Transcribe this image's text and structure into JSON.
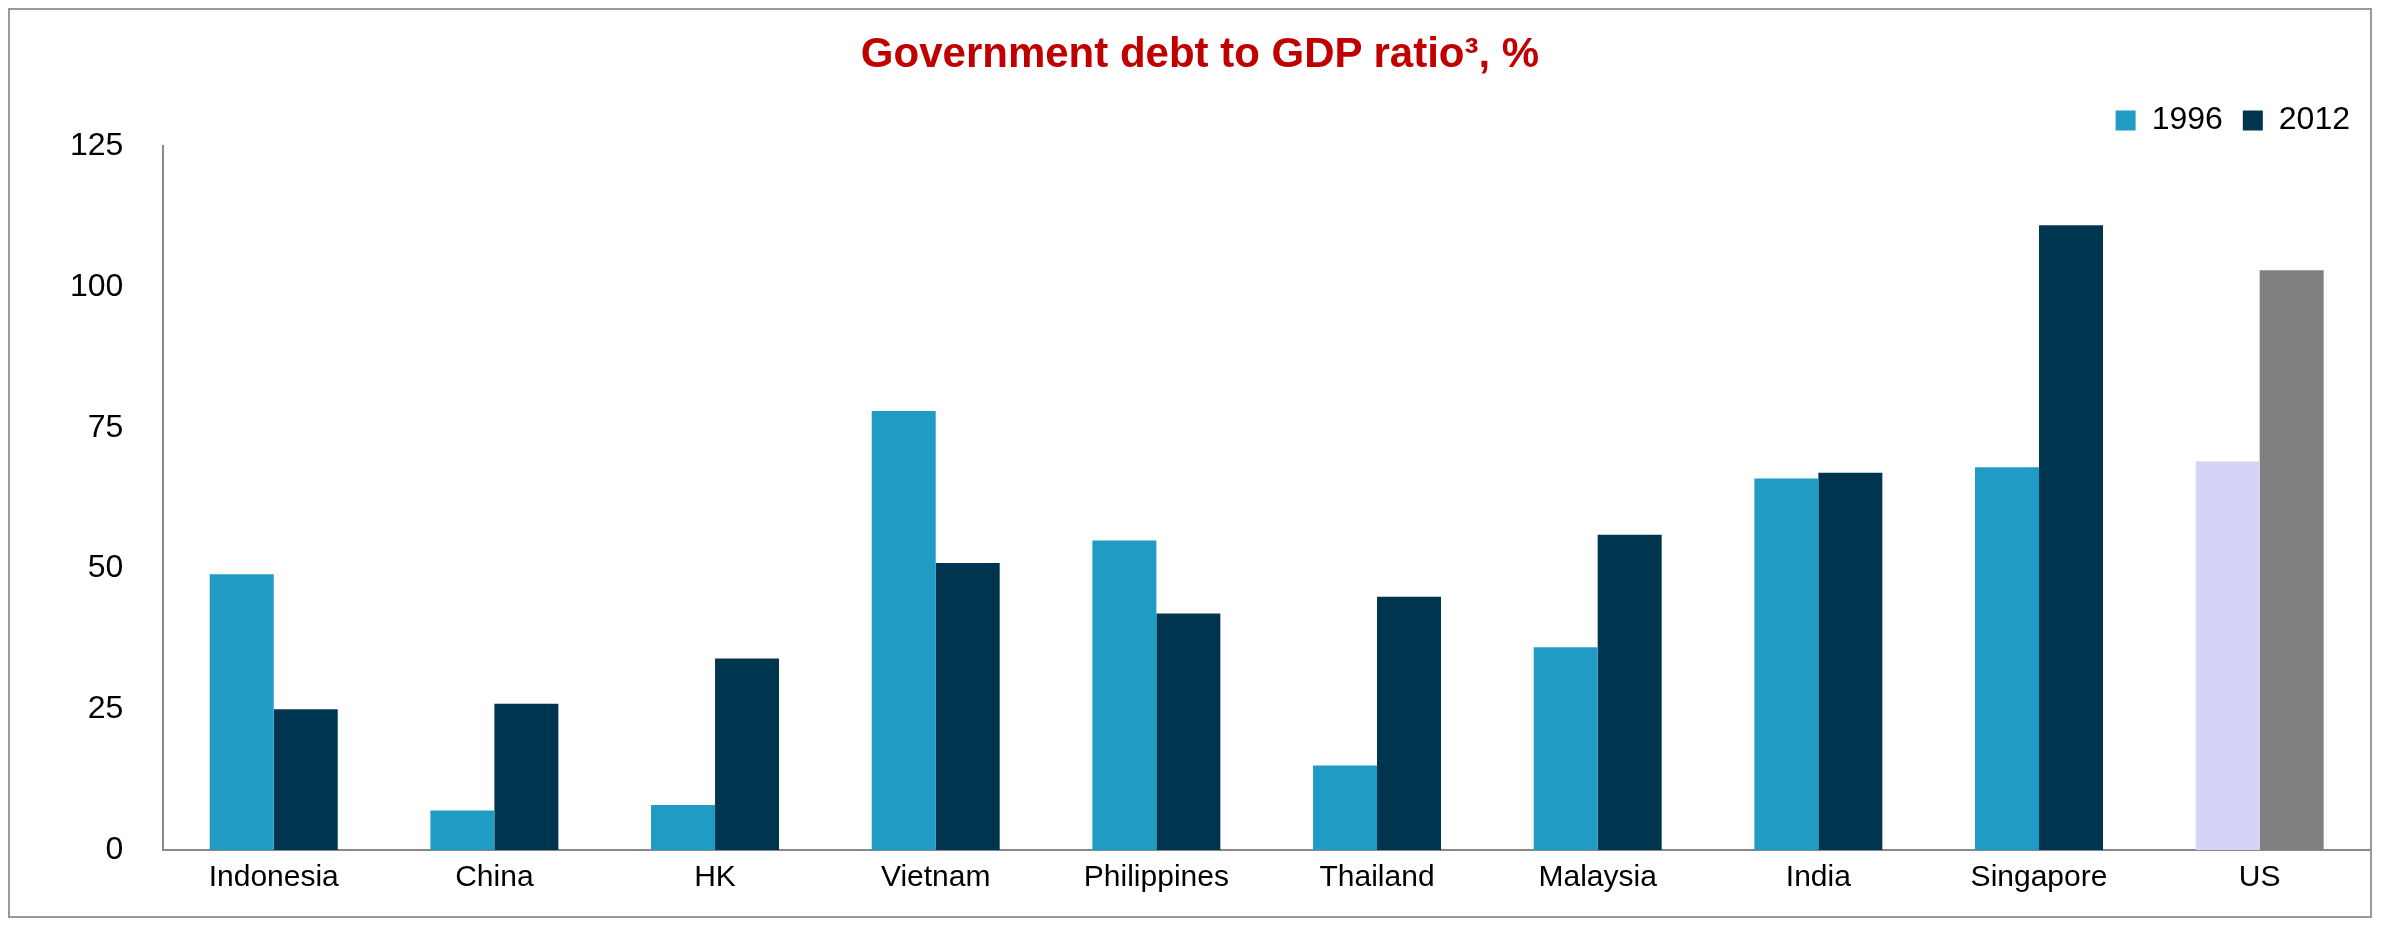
{
  "chart_data": {
    "type": "bar",
    "title": "Government debt to GDP ratio³, %",
    "categories": [
      "Indonesia",
      "China",
      "HK",
      "Vietnam",
      "Philippines",
      "Thailand",
      "Malaysia",
      "India",
      "Singapore",
      "US"
    ],
    "series": [
      {
        "name": "1996",
        "color": "#1f9bc4",
        "colors": [
          "#1f9bc4",
          "#1f9bc4",
          "#1f9bc4",
          "#1f9bc4",
          "#1f9bc4",
          "#1f9bc4",
          "#1f9bc4",
          "#1f9bc4",
          "#1f9bc4",
          "#d4d4f7"
        ],
        "values": [
          49,
          7,
          8,
          78,
          55,
          15,
          36,
          66,
          68,
          69
        ]
      },
      {
        "name": "2012",
        "color": "#003550",
        "colors": [
          "#003550",
          "#003550",
          "#003550",
          "#003550",
          "#003550",
          "#003550",
          "#003550",
          "#003550",
          "#003550",
          "#808080"
        ],
        "values": [
          25,
          26,
          34,
          51,
          42,
          45,
          56,
          67,
          111,
          103
        ]
      }
    ],
    "ylim": [
      0,
      125
    ],
    "yticks": [
      0,
      25,
      50,
      75,
      100,
      125
    ],
    "grid": false,
    "legend": "top right"
  }
}
